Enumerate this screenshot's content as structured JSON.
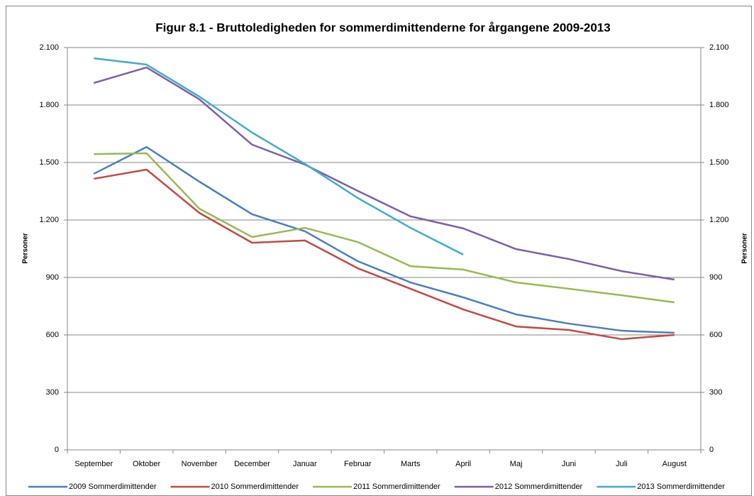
{
  "chart_data": {
    "type": "line",
    "title": "Figur 8.1 - Bruttoledigheden  for sommerdimittenderne  for årgangene 2009-2013",
    "y_label": "Personer",
    "y2_label": "Personer",
    "categories": [
      "September",
      "Oktober",
      "November",
      "December",
      "Januar",
      "Februar",
      "Marts",
      "April",
      "Maj",
      "Juni",
      "Juli",
      "August"
    ],
    "series": [
      {
        "name": "2009 Sommerdimittender",
        "color": "#4a7ebb",
        "values": [
          1441,
          1581,
          1400,
          1230,
          1141,
          985,
          874,
          796,
          707,
          659,
          622,
          611
        ]
      },
      {
        "name": "2010 Sommerdimittender",
        "color": "#be4b48",
        "values": [
          1415,
          1463,
          1237,
          1081,
          1093,
          948,
          841,
          733,
          644,
          626,
          578,
          600
        ]
      },
      {
        "name": "2011 Sommerdimittender",
        "color": "#98b954",
        "values": [
          1544,
          1548,
          1259,
          1111,
          1159,
          1085,
          959,
          941,
          874,
          841,
          807,
          770
        ]
      },
      {
        "name": "2012 Sommerdimittender",
        "color": "#7d60a0",
        "values": [
          1915,
          1996,
          1830,
          1593,
          1489,
          1352,
          1219,
          1156,
          1048,
          996,
          933,
          889
        ]
      },
      {
        "name": "2013 Sommerdimittender",
        "color": "#46aac5",
        "values": [
          2044,
          2011,
          1844,
          1656,
          1493,
          1315,
          1159,
          1019,
          null,
          null,
          null,
          null
        ]
      }
    ],
    "ylim": [
      0,
      2100
    ],
    "yticks": [
      0,
      300,
      600,
      900,
      {
        "value": 1200,
        "label": "1.200"
      },
      {
        "value": 1500,
        "label": "1.500"
      },
      {
        "value": 1800,
        "label": "1.800"
      },
      {
        "value": 2100,
        "label": "2.100"
      }
    ],
    "y2lim": [
      0,
      2100
    ],
    "y2ticks": [
      0,
      300,
      600,
      900,
      {
        "value": 1200,
        "label": "1.200"
      },
      {
        "value": 1500,
        "label": "1.500"
      },
      {
        "value": 1800,
        "label": "1.800"
      },
      {
        "value": 2100,
        "label": "2.100"
      }
    ],
    "grid": true,
    "legend": "bottom"
  }
}
